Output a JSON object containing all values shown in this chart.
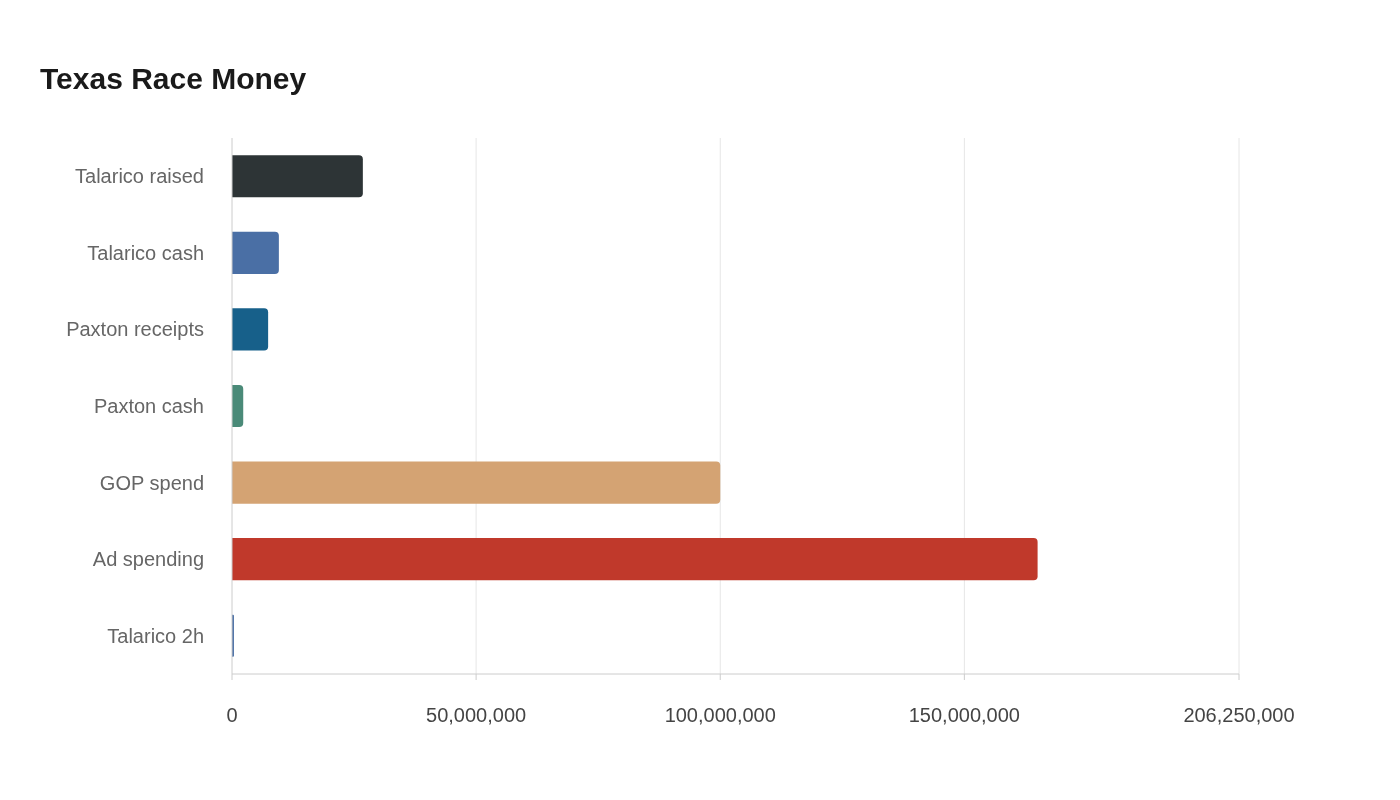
{
  "chart_data": {
    "type": "bar",
    "title": "Texas Race Money",
    "orientation": "horizontal",
    "categories": [
      "Talarico raised",
      "Talarico cash",
      "Paxton receipts",
      "Paxton cash",
      "GOP spend",
      "Ad spending",
      "Talarico 2h"
    ],
    "values": [
      26800000,
      9600000,
      7400000,
      2300000,
      100000000,
      165000000,
      400000
    ],
    "colors": [
      "#2d3436",
      "#4a6fa5",
      "#17608a",
      "#4a8a78",
      "#d4a373",
      "#c0392b",
      "#4a6fa5"
    ],
    "xlim": [
      0,
      206250000
    ],
    "xticks": [
      0,
      {
        "value": 50000000,
        "label": "50,000,000"
      },
      {
        "value": 100000000,
        "label": "100,000,000"
      },
      {
        "value": 150000000,
        "label": "150,000,000"
      },
      {
        "value": 206250000,
        "label": "206,250,000"
      }
    ],
    "grid": "x"
  }
}
